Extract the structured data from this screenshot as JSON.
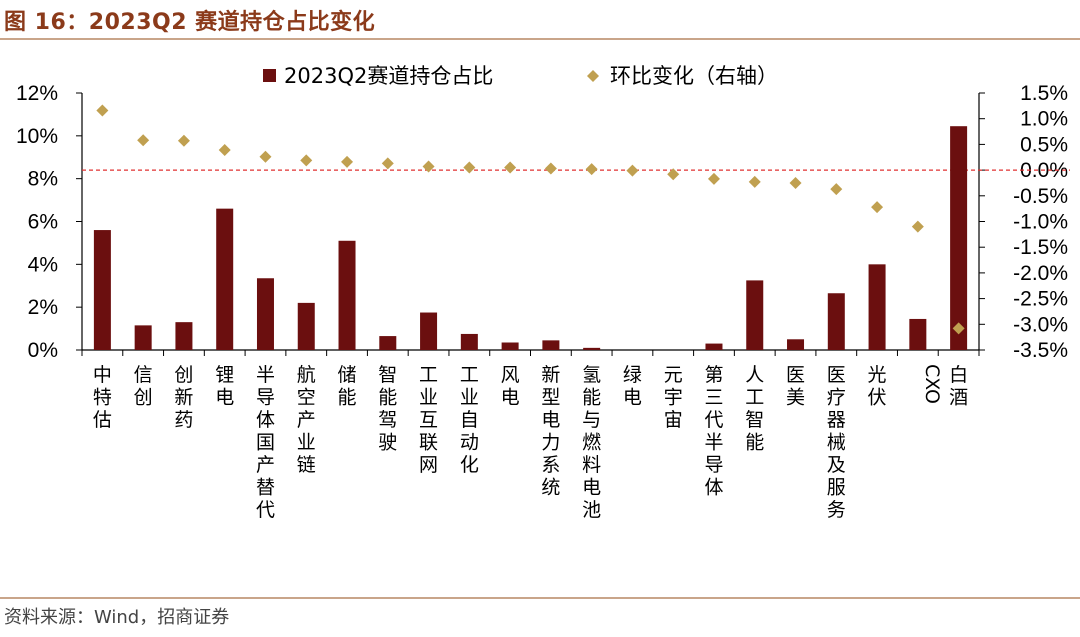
{
  "figure": {
    "title": "图 16：2023Q2 赛道持仓占比变化",
    "source": "资料来源：Wind，招商证券"
  },
  "colors": {
    "bar": "#6b0f0f",
    "diamond": "#c0a050",
    "zero_line": "#e03030",
    "rule": "#c9a58a",
    "title": "#8b3a1a"
  },
  "chart_data": {
    "type": "bar",
    "categories": [
      "中特估",
      "信创",
      "创新药",
      "锂电",
      "半导体国产替代",
      "航空产业链",
      "储能",
      "智能驾驶",
      "工业互联网",
      "工业自动化",
      "风电",
      "新型电力系统",
      "氢能与燃料电池",
      "绿电",
      "元宇宙",
      "第三代半导体",
      "人工智能",
      "医美",
      "医疗器械及服务",
      "光伏",
      "CXO",
      "白酒"
    ],
    "series": [
      {
        "name": "2023Q2赛道持仓占比",
        "type": "bar",
        "axis": "left",
        "values": [
          5.6,
          1.15,
          1.3,
          6.6,
          3.35,
          2.2,
          5.1,
          0.65,
          1.75,
          0.75,
          0.35,
          0.45,
          0.1,
          0.0,
          0.0,
          0.3,
          3.25,
          0.5,
          2.65,
          4.0,
          1.45,
          10.45
        ]
      },
      {
        "name": "环比变化（右轴）",
        "type": "scatter",
        "axis": "right",
        "values": [
          1.16,
          0.58,
          0.57,
          0.39,
          0.26,
          0.19,
          0.16,
          0.13,
          0.07,
          0.05,
          0.05,
          0.03,
          0.02,
          -0.01,
          -0.08,
          -0.17,
          -0.23,
          -0.25,
          -0.37,
          -0.72,
          -1.1,
          -3.08
        ]
      }
    ],
    "y_left": {
      "min": 0,
      "max": 12,
      "ticks": [
        "0%",
        "2%",
        "4%",
        "6%",
        "8%",
        "10%",
        "12%"
      ]
    },
    "y_right": {
      "min": -3.5,
      "max": 1.5,
      "ticks": [
        "-3.5%",
        "-3.0%",
        "-2.5%",
        "-2.0%",
        "-1.5%",
        "-1.0%",
        "-0.5%",
        "0.0%",
        "0.5%",
        "1.0%",
        "1.5%"
      ]
    },
    "reference_line": {
      "axis": "right",
      "value": 0,
      "style": "dashed"
    },
    "grid": false,
    "legend": "top-center"
  }
}
